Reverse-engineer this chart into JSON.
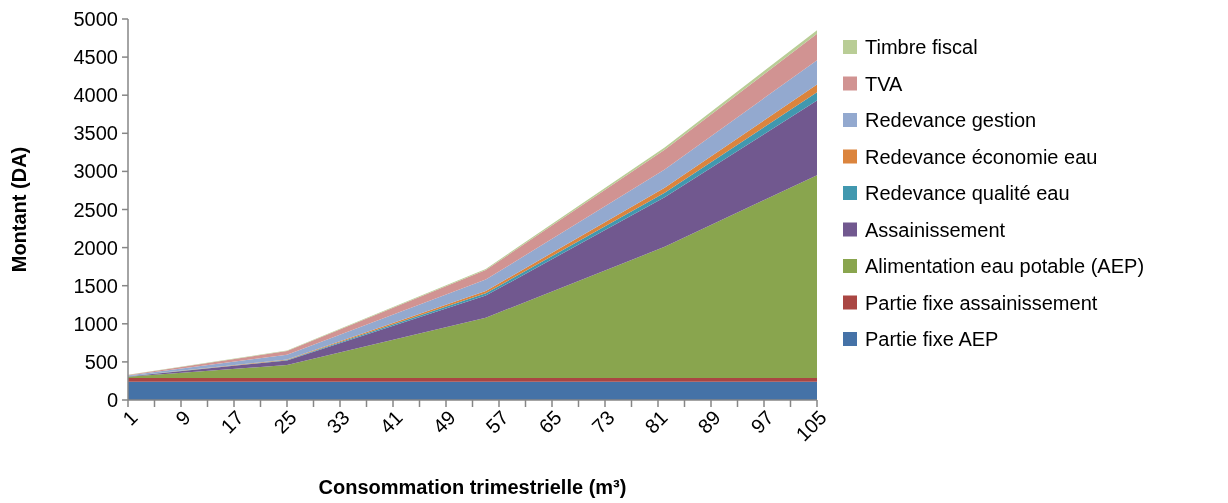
{
  "chart_data": {
    "type": "area",
    "stacked": true,
    "xlabel": "Consommation trimestrielle (m³)",
    "ylabel": "Montant (DA)",
    "x": [
      1,
      25,
      55,
      82,
      105
    ],
    "xlim": [
      1,
      105
    ],
    "xticks": [
      1,
      {
        "value": 5,
        "label": null
      },
      9,
      {
        "value": 13,
        "label": null
      },
      17,
      {
        "value": 21,
        "label": null
      },
      25,
      {
        "value": 29,
        "label": null
      },
      33,
      {
        "value": 37,
        "label": null
      },
      41,
      {
        "value": 45,
        "label": null
      },
      49,
      {
        "value": 53,
        "label": null
      },
      57,
      {
        "value": 61,
        "label": null
      },
      65,
      {
        "value": 69,
        "label": null
      },
      73,
      {
        "value": 77,
        "label": null
      },
      81,
      {
        "value": 85,
        "label": null
      },
      89,
      {
        "value": 93,
        "label": null
      },
      97,
      {
        "value": 101,
        "label": null
      },
      105
    ],
    "ylim": [
      0,
      5000
    ],
    "yticks": [
      0,
      500,
      1000,
      1500,
      2000,
      2500,
      3000,
      3500,
      4000,
      4500,
      5000
    ],
    "grid": false,
    "legend": "right",
    "series": [
      {
        "name": "Partie fixe AEP",
        "color": "#4572a7",
        "values": [
          240,
          240,
          240,
          240,
          240
        ]
      },
      {
        "name": "Partie fixe assainissement",
        "color": "#aa4643",
        "values": [
          50,
          50,
          50,
          50,
          50
        ]
      },
      {
        "name": "Alimentation eau potable (AEP)",
        "color": "#89a54e",
        "values": [
          15,
          170,
          790,
          1720,
          2660
        ]
      },
      {
        "name": "Assainissement",
        "color": "#71588f",
        "values": [
          5,
          60,
          290,
          650,
          980
        ]
      },
      {
        "name": "Redevance qualité eau",
        "color": "#4198af",
        "values": [
          1,
          5,
          30,
          60,
          110
        ]
      },
      {
        "name": "Redevance économie eau",
        "color": "#db843d",
        "values": [
          1,
          5,
          30,
          65,
          100
        ]
      },
      {
        "name": "Redevance gestion",
        "color": "#93a9cf",
        "values": [
          8,
          65,
          150,
          240,
          320
        ]
      },
      {
        "name": "TVA",
        "color": "#d19392",
        "values": [
          8,
          48,
          125,
          260,
          345
        ]
      },
      {
        "name": "Timbre fiscal",
        "color": "#b9cd96",
        "values": [
          2,
          7,
          15,
          30,
          48
        ]
      }
    ]
  }
}
